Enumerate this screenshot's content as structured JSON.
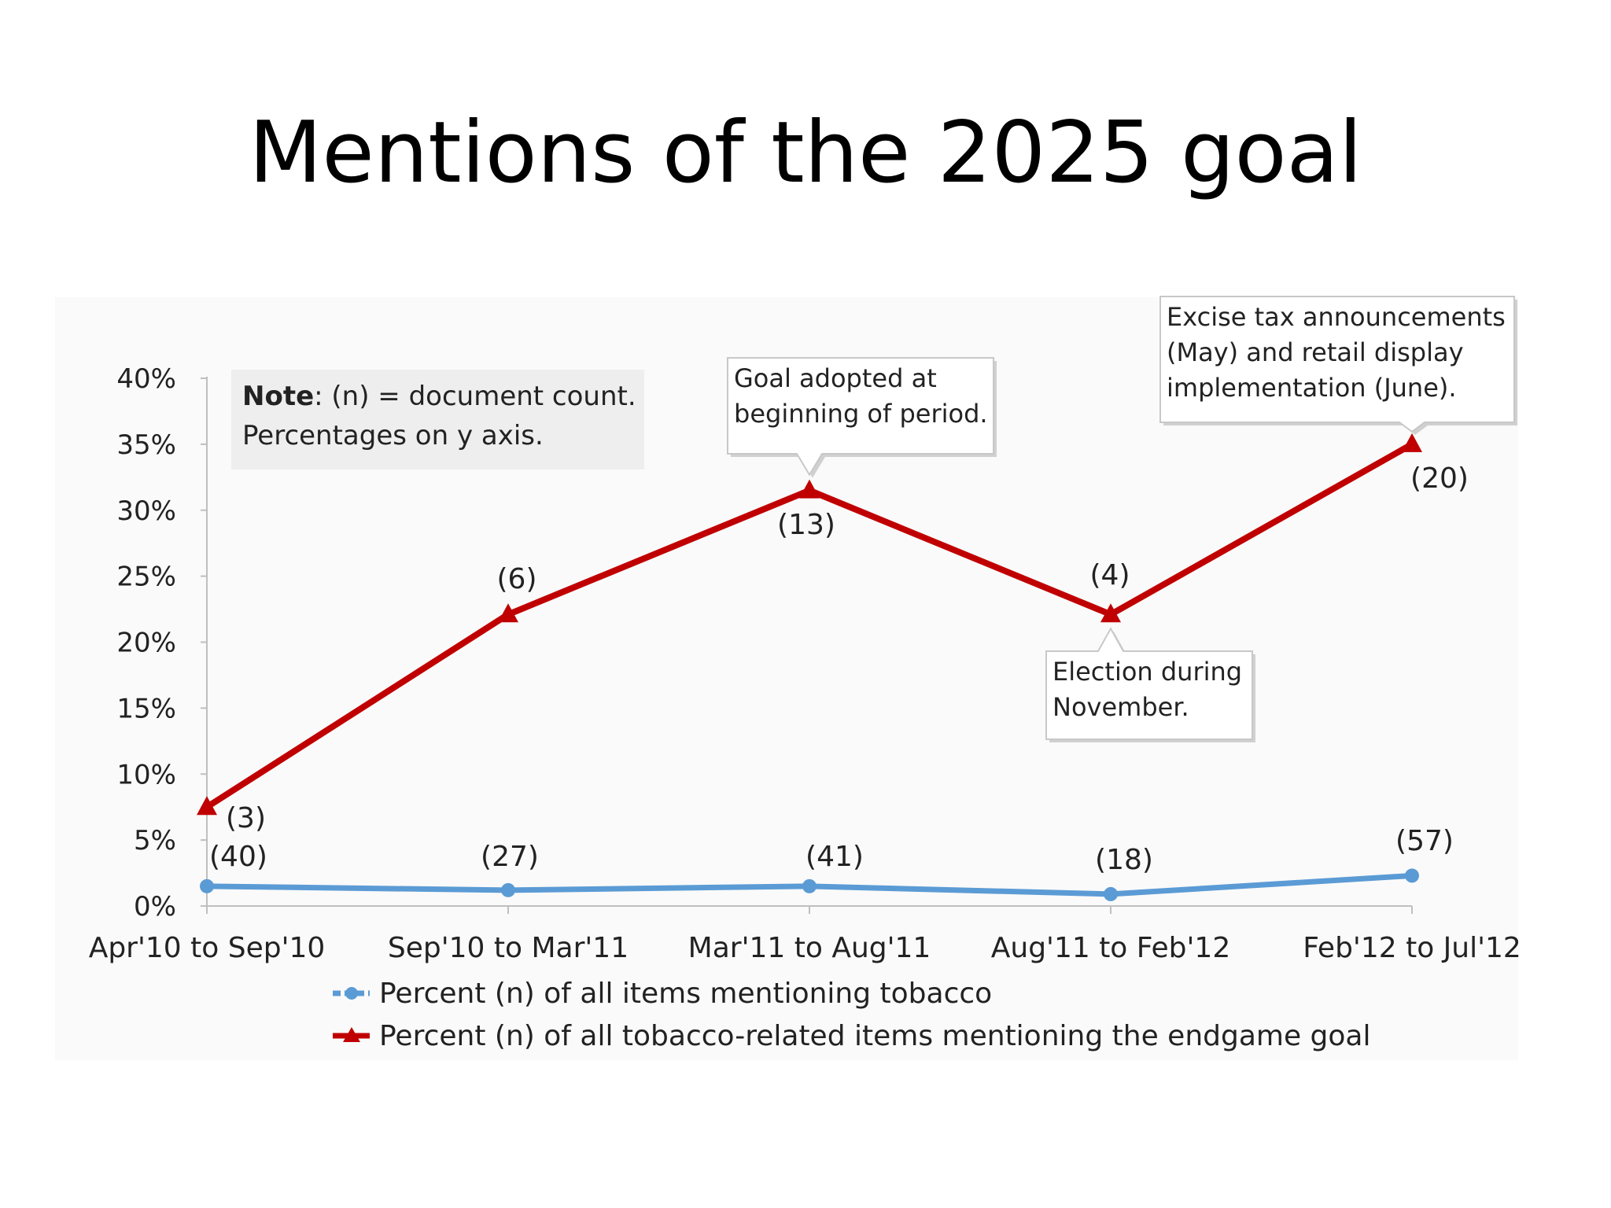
{
  "slide": {
    "title": "Mentions of the 2025 goal"
  },
  "chart_data": {
    "type": "line",
    "categories": [
      "Apr'10 to Sep'10",
      "Sep'10 to Mar'11",
      "Mar'11 to Aug'11",
      "Aug'11 to Feb'12",
      "Feb'12 to Jul'12"
    ],
    "ylim": [
      0,
      40
    ],
    "yticks": [
      "0%",
      "5%",
      "10%",
      "15%",
      "20%",
      "25%",
      "30%",
      "35%",
      "40%"
    ],
    "ytick_values": [
      0,
      5,
      10,
      15,
      20,
      25,
      30,
      35,
      40
    ],
    "grid": false,
    "legend_position": "bottom",
    "series": [
      {
        "name": "Percent (n) of all items mentioning tobacco",
        "color": "#5b9bd5",
        "marker": "circle",
        "values": [
          1.5,
          1.2,
          1.5,
          0.9,
          2.3
        ],
        "labels": [
          "(40)",
          "(27)",
          "(41)",
          "(18)",
          "(57)"
        ]
      },
      {
        "name": "Percent (n) of all tobacco-related items mentioning the endgame goal",
        "color": "#c00000",
        "marker": "triangle",
        "values": [
          7.5,
          22.1,
          31.5,
          22.1,
          35.0
        ],
        "labels": [
          "(3)",
          "(6)",
          "(13)",
          "(4)",
          "(20)"
        ]
      }
    ],
    "note": {
      "bold": "Note",
      "line1": ": (n) = document count.",
      "line2": "Percentages on y axis."
    },
    "annotations": [
      {
        "category_index": 2,
        "lines": [
          "Goal adopted at",
          "beginning of period."
        ]
      },
      {
        "category_index": 3,
        "lines": [
          "Election during",
          "November."
        ]
      },
      {
        "category_index": 4,
        "lines": [
          "Excise tax announcements",
          "(May) and retail display",
          "implementation (June)."
        ]
      }
    ]
  }
}
